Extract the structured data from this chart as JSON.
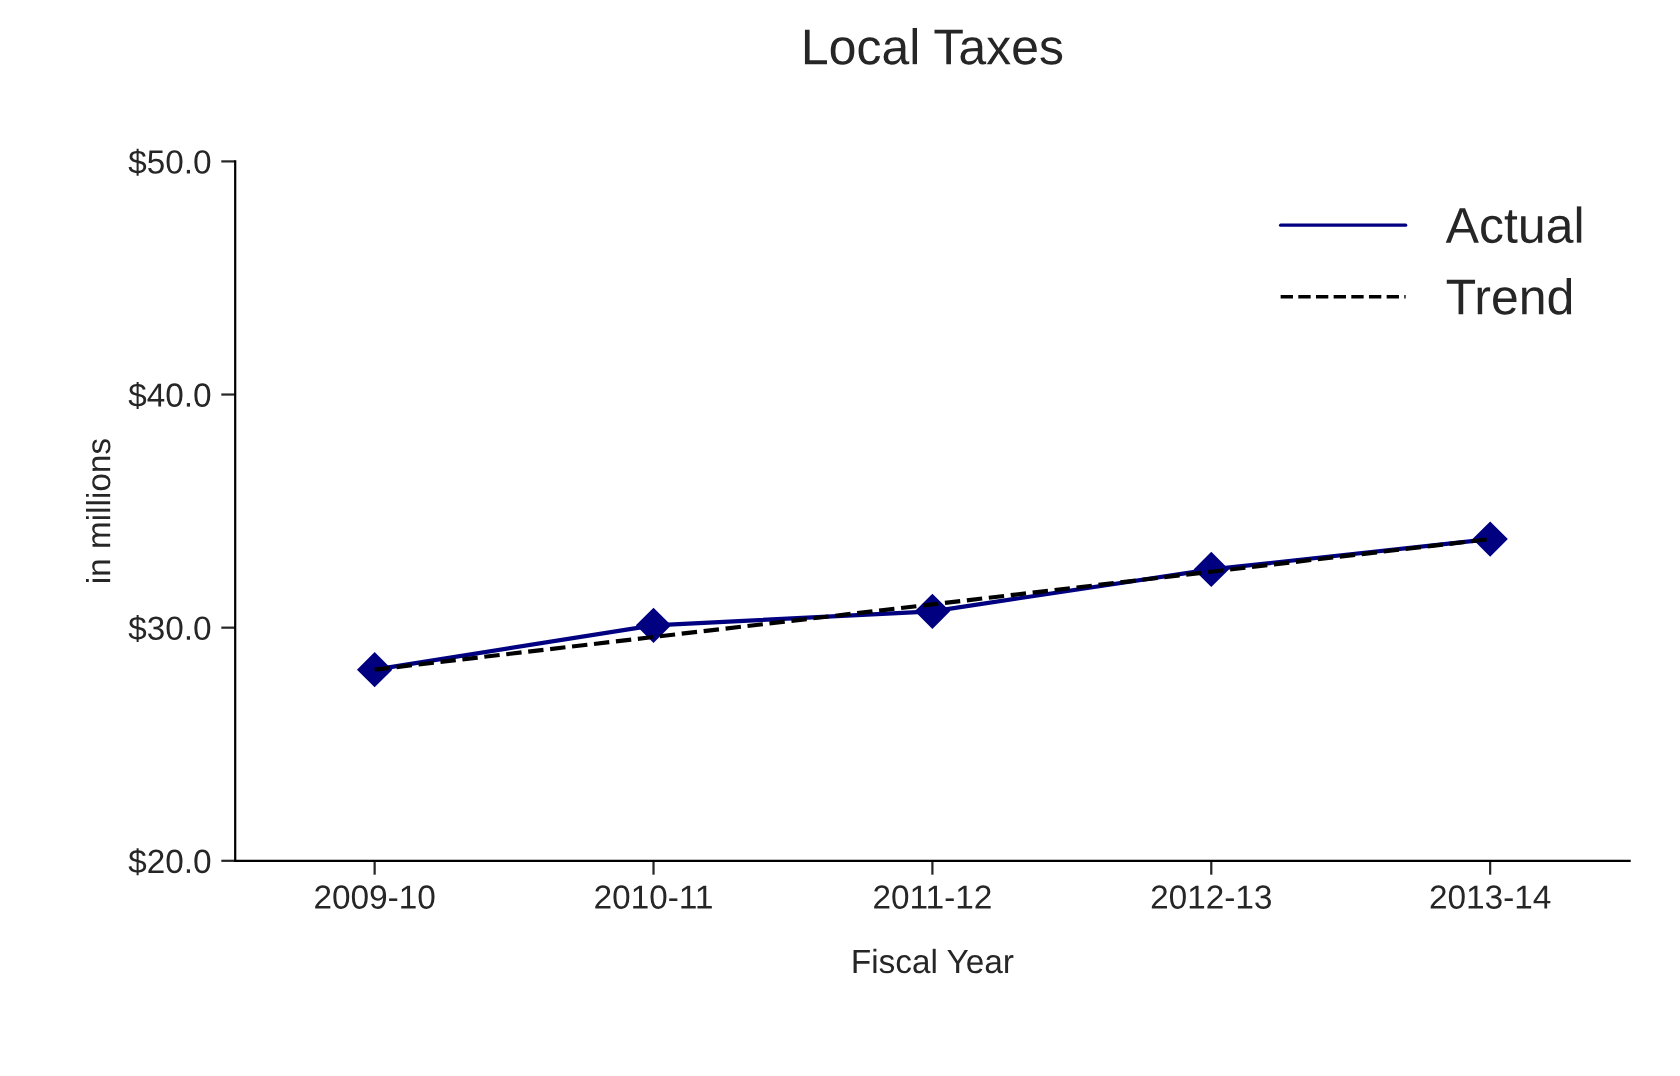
{
  "chart_data": {
    "type": "line",
    "title": "Local Taxes",
    "xlabel": "Fiscal Year",
    "ylabel": "in millions",
    "categories": [
      "2009-10",
      "2010-11",
      "2011-12",
      "2012-13",
      "2013-14"
    ],
    "series": [
      {
        "name": "Actual",
        "color": "#000080",
        "values": [
          28.2,
          30.1,
          30.7,
          32.5,
          33.8
        ],
        "marker": "diamond",
        "line_style": "solid"
      },
      {
        "name": "Trend",
        "color": "#000000",
        "values": [
          28.2,
          29.6,
          31.0,
          32.4,
          33.8
        ],
        "marker": "none",
        "line_style": "dashed"
      }
    ],
    "ylim": [
      20,
      50
    ],
    "yticks": [
      {
        "value": 20,
        "label": "$20.0"
      },
      {
        "value": 30,
        "label": "$30.0"
      },
      {
        "value": 40,
        "label": "$40.0"
      },
      {
        "value": 50,
        "label": "$50.0"
      }
    ],
    "grid": false,
    "legend": "top right"
  }
}
